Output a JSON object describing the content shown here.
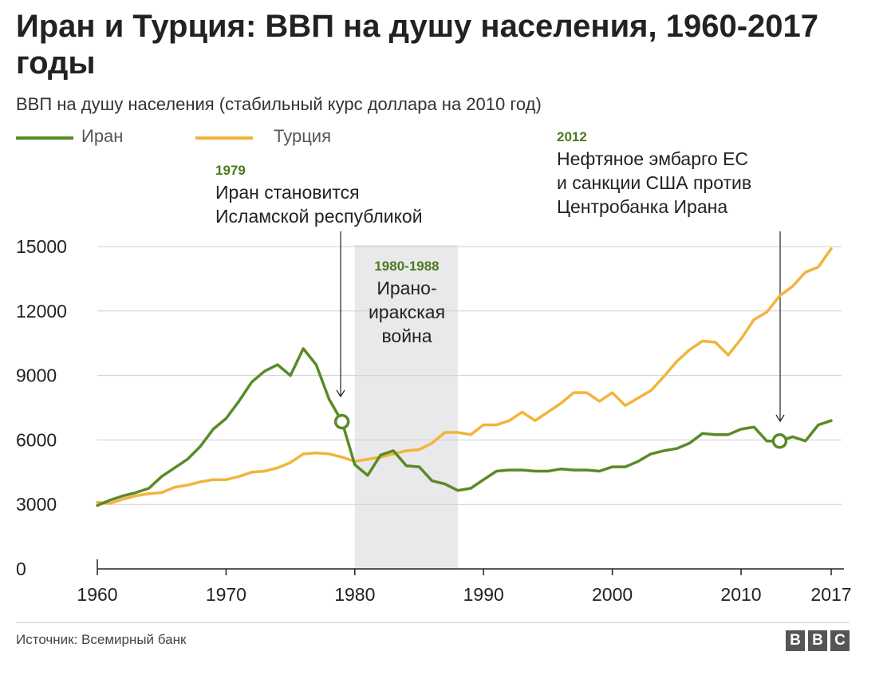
{
  "title": "Иран и Турция: ВВП на душу населения, 1960-2017 годы",
  "subtitle": "ВВП на душу населения (стабильный курс доллара на 2010 год)",
  "legend": [
    {
      "label": "Иран",
      "color": "#5a8a26"
    },
    {
      "label": "Турция",
      "color": "#f2b43c"
    }
  ],
  "annotations": {
    "a1979": {
      "year": "1979",
      "text": "Иран становится\nИсламской республикой"
    },
    "a1980": {
      "year": "1980-1988",
      "text": "Ирано-\nиракская\nвойна"
    },
    "a2012": {
      "year": "2012",
      "text": "Нефтяное эмбарго ЕС\nи санкции США против\nЦентробанка Ирана"
    }
  },
  "source": "Источник: Всемирный банк",
  "logo": [
    "B",
    "B",
    "C"
  ],
  "chart_data": {
    "type": "line",
    "x": [
      1960,
      1961,
      1962,
      1963,
      1964,
      1965,
      1966,
      1967,
      1968,
      1969,
      1970,
      1971,
      1972,
      1973,
      1974,
      1975,
      1976,
      1977,
      1978,
      1979,
      1980,
      1981,
      1982,
      1983,
      1984,
      1985,
      1986,
      1987,
      1988,
      1989,
      1990,
      1991,
      1992,
      1993,
      1994,
      1995,
      1996,
      1997,
      1998,
      1999,
      2000,
      2001,
      2002,
      2003,
      2004,
      2005,
      2006,
      2007,
      2008,
      2009,
      2010,
      2011,
      2012,
      2013,
      2014,
      2015,
      2016,
      2017
    ],
    "series": [
      {
        "name": "Иран",
        "color": "#5a8a26",
        "values": [
          2950,
          3200,
          3400,
          3550,
          3750,
          4300,
          4700,
          5100,
          5700,
          6500,
          7000,
          7800,
          8700,
          9200,
          9500,
          9000,
          10250,
          9500,
          7900,
          6850,
          4850,
          4350,
          5300,
          5500,
          4800,
          4750,
          4100,
          3950,
          3650,
          3750,
          4150,
          4550,
          4600,
          4600,
          4550,
          4550,
          4650,
          4600,
          4600,
          4550,
          4750,
          4750,
          5000,
          5350,
          5500,
          5600,
          5850,
          6300,
          6250,
          6250,
          6500,
          6600,
          5950,
          5950,
          6150,
          5950,
          6700,
          6900
        ]
      },
      {
        "name": "Турция",
        "color": "#f2b43c",
        "values": [
          3100,
          3050,
          3250,
          3400,
          3500,
          3550,
          3800,
          3900,
          4050,
          4150,
          4150,
          4300,
          4500,
          4550,
          4700,
          4950,
          5350,
          5400,
          5350,
          5200,
          5000,
          5100,
          5200,
          5350,
          5500,
          5550,
          5850,
          6350,
          6350,
          6250,
          6700,
          6700,
          6900,
          7300,
          6900,
          7300,
          7700,
          8200,
          8200,
          7800,
          8200,
          7600,
          7950,
          8300,
          8950,
          9650,
          10200,
          10600,
          10550,
          9950,
          10700,
          11600,
          11950,
          12700,
          13150,
          13800,
          14050,
          14900
        ]
      }
    ],
    "xticks": [
      "1960",
      "1970",
      "1980",
      "1990",
      "2000",
      "2010",
      "2017"
    ],
    "yticks": [
      "0",
      "3000",
      "6000",
      "9000",
      "12000",
      "15000"
    ],
    "xlim": [
      1960,
      2017
    ],
    "ylim": [
      0,
      15000
    ],
    "grid": true,
    "shaded_period": [
      1980,
      1988
    ],
    "markers": [
      {
        "year": 1979,
        "value": 6850
      },
      {
        "year": 2013,
        "value": 5950
      }
    ],
    "legend_position": "top-left"
  }
}
